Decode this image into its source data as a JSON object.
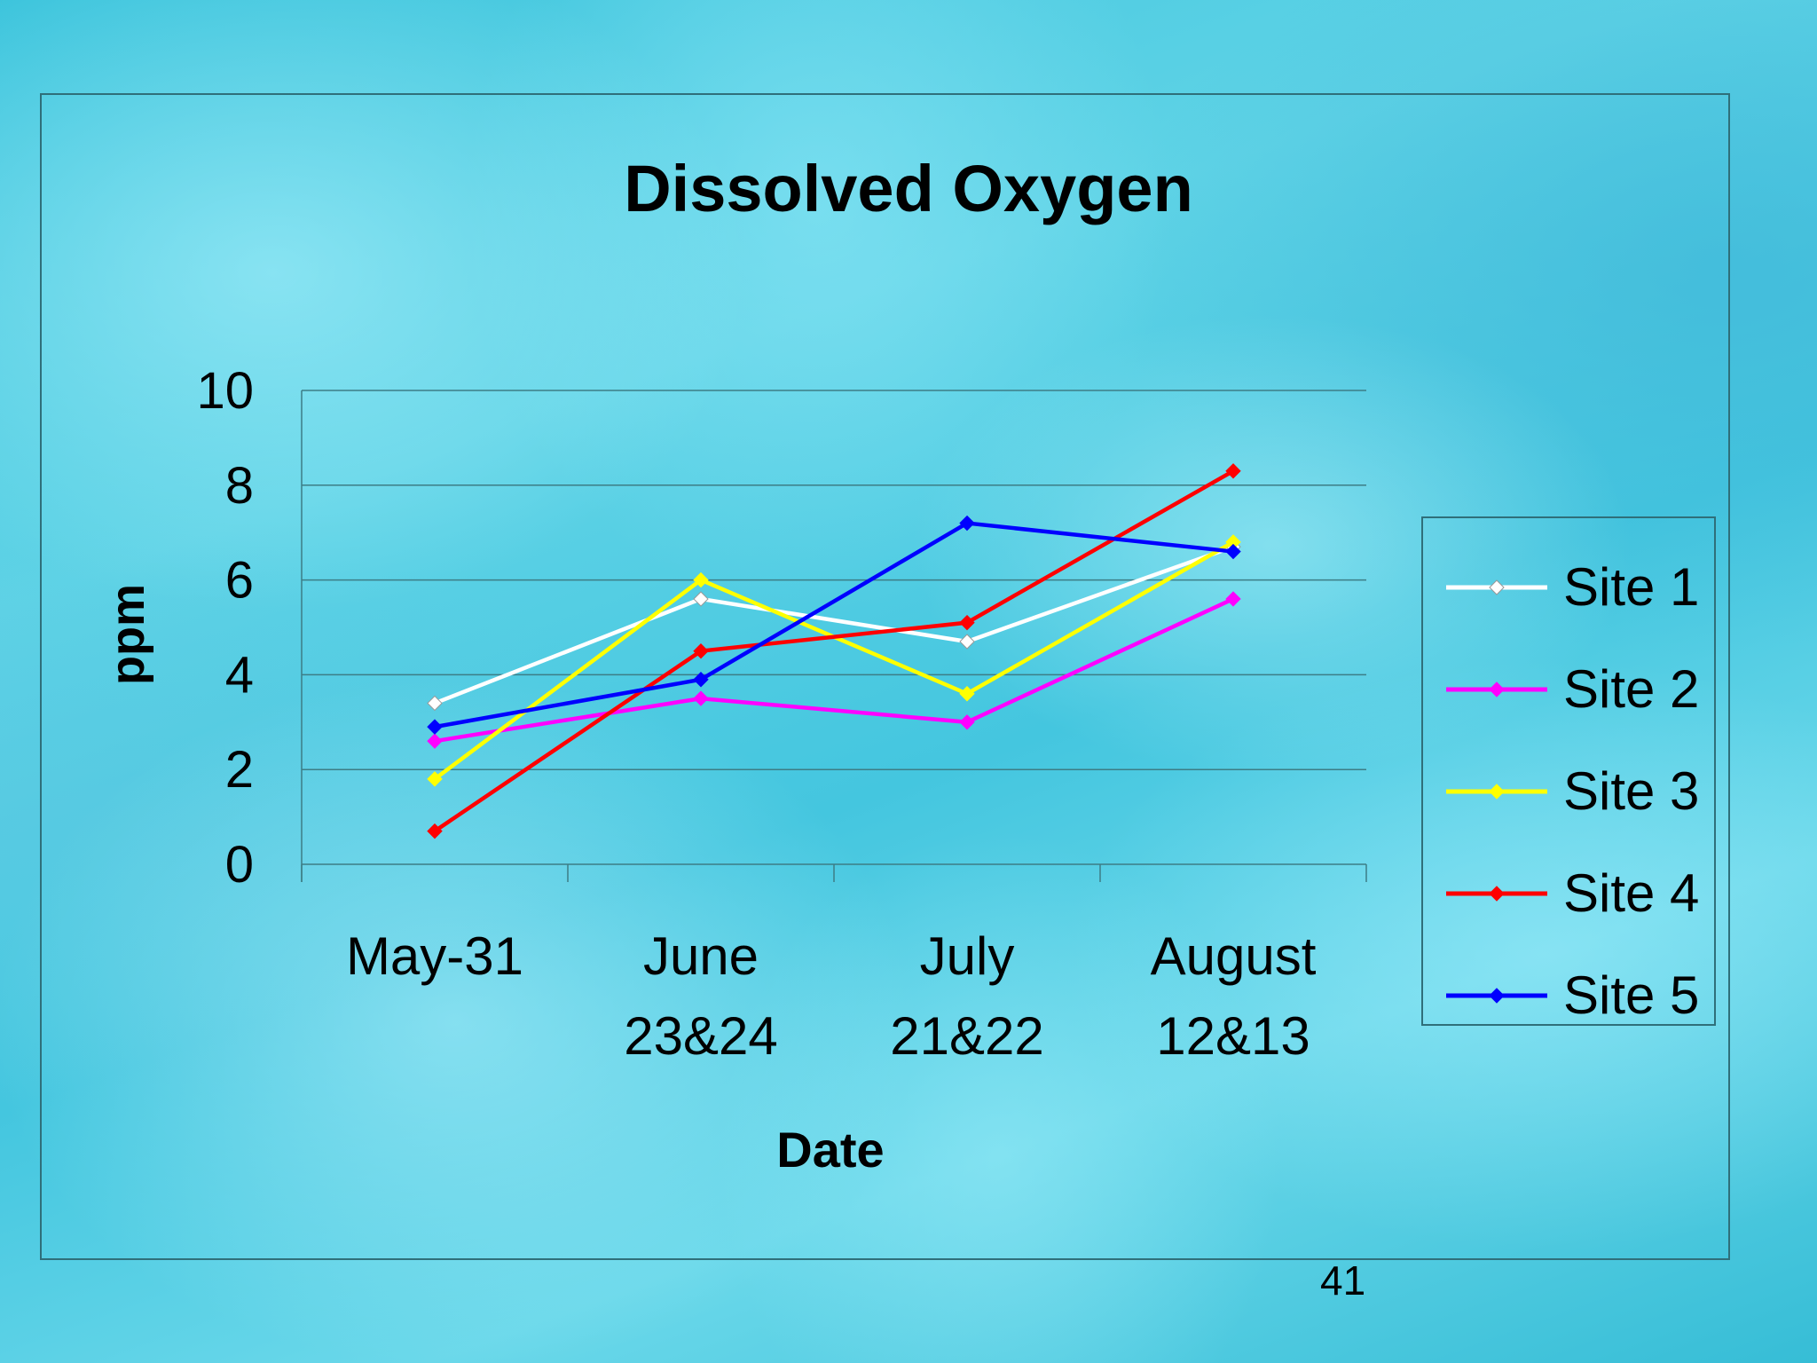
{
  "slide": {
    "page_number": "41"
  },
  "chart_data": {
    "type": "line",
    "title": "Dissolved Oxygen",
    "xlabel": "Date",
    "ylabel": "ppm",
    "categories": [
      [
        "May-31"
      ],
      [
        "June",
        "23&24"
      ],
      [
        "July",
        "21&22"
      ],
      [
        "August",
        "12&13"
      ]
    ],
    "ylim": [
      0,
      10
    ],
    "yticks": [
      "0",
      "2",
      "4",
      "6",
      "8",
      "10"
    ],
    "grid": true,
    "legend_position": "right",
    "series": [
      {
        "name": "Site 1",
        "color": "#ffffff",
        "values": [
          3.4,
          5.6,
          4.7,
          6.7
        ]
      },
      {
        "name": "Site 2",
        "color": "#ff00ff",
        "values": [
          2.6,
          3.5,
          3.0,
          5.6
        ]
      },
      {
        "name": "Site 3",
        "color": "#ffff00",
        "values": [
          1.8,
          6.0,
          3.6,
          6.8
        ]
      },
      {
        "name": "Site 4",
        "color": "#ff0000",
        "values": [
          0.7,
          4.5,
          5.1,
          8.3
        ]
      },
      {
        "name": "Site 5",
        "color": "#0000ff",
        "values": [
          2.9,
          3.9,
          7.2,
          6.6
        ]
      }
    ]
  }
}
